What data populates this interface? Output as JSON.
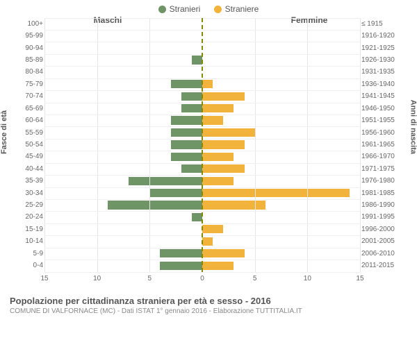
{
  "chart": {
    "type": "population-pyramid",
    "legend": {
      "male": "Stranieri",
      "female": "Straniere"
    },
    "colors": {
      "male": "#6f9566",
      "female": "#f2b33d",
      "grid": "#e6e6e6",
      "ygrid": "#f0f0f0",
      "center_line": "#888800",
      "background": "#ffffff",
      "text": "#555555"
    },
    "header_left": "Maschi",
    "header_right": "Femmine",
    "y_axis_left_title": "Fasce di età",
    "y_axis_right_title": "Anni di nascita",
    "x_axis": {
      "max": 15,
      "ticks": [
        15,
        10,
        5,
        0,
        5,
        10,
        15
      ]
    },
    "bar_width_ratio": 0.7,
    "rows": [
      {
        "age": "100+",
        "birth": "≤ 1915",
        "m": 0,
        "f": 0
      },
      {
        "age": "95-99",
        "birth": "1916-1920",
        "m": 0,
        "f": 0
      },
      {
        "age": "90-94",
        "birth": "1921-1925",
        "m": 0,
        "f": 0
      },
      {
        "age": "85-89",
        "birth": "1926-1930",
        "m": 1,
        "f": 0
      },
      {
        "age": "80-84",
        "birth": "1931-1935",
        "m": 0,
        "f": 0
      },
      {
        "age": "75-79",
        "birth": "1936-1940",
        "m": 3,
        "f": 1
      },
      {
        "age": "70-74",
        "birth": "1941-1945",
        "m": 2,
        "f": 4
      },
      {
        "age": "65-69",
        "birth": "1946-1950",
        "m": 2,
        "f": 3
      },
      {
        "age": "60-64",
        "birth": "1951-1955",
        "m": 3,
        "f": 2
      },
      {
        "age": "55-59",
        "birth": "1956-1960",
        "m": 3,
        "f": 5
      },
      {
        "age": "50-54",
        "birth": "1961-1965",
        "m": 3,
        "f": 4
      },
      {
        "age": "45-49",
        "birth": "1966-1970",
        "m": 3,
        "f": 3
      },
      {
        "age": "40-44",
        "birth": "1971-1975",
        "m": 2,
        "f": 4
      },
      {
        "age": "35-39",
        "birth": "1976-1980",
        "m": 7,
        "f": 3
      },
      {
        "age": "30-34",
        "birth": "1981-1985",
        "m": 5,
        "f": 14
      },
      {
        "age": "25-29",
        "birth": "1986-1990",
        "m": 9,
        "f": 6
      },
      {
        "age": "20-24",
        "birth": "1991-1995",
        "m": 1,
        "f": 0
      },
      {
        "age": "15-19",
        "birth": "1996-2000",
        "m": 0,
        "f": 2
      },
      {
        "age": "10-14",
        "birth": "2001-2005",
        "m": 0,
        "f": 1
      },
      {
        "age": "5-9",
        "birth": "2006-2010",
        "m": 4,
        "f": 4
      },
      {
        "age": "0-4",
        "birth": "2011-2015",
        "m": 4,
        "f": 3
      }
    ],
    "footer_title": "Popolazione per cittadinanza straniera per età e sesso - 2016",
    "footer_sub": "COMUNE DI VALFORNACE (MC) - Dati ISTAT 1° gennaio 2016 - Elaborazione TUTTITALIA.IT"
  }
}
